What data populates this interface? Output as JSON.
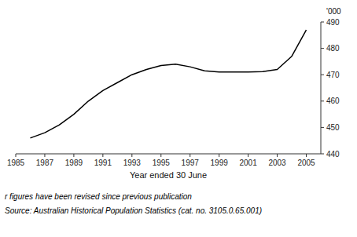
{
  "chart_data": {
    "type": "line",
    "x": [
      1986,
      1987,
      1988,
      1989,
      1990,
      1991,
      1992,
      1993,
      1994,
      1995,
      1996,
      1997,
      1998,
      1999,
      2000,
      2001,
      2002,
      2003,
      2004,
      2005
    ],
    "values": [
      446,
      448,
      451,
      455,
      460,
      464,
      467,
      470,
      472,
      473.5,
      474,
      473,
      471.5,
      471,
      471,
      471,
      471.2,
      472,
      477,
      487
    ],
    "color": "#000000",
    "xlim": [
      1985,
      2006
    ],
    "ylim": [
      440,
      490
    ],
    "xticks": [
      1985,
      1987,
      1989,
      1991,
      1993,
      1995,
      1997,
      1999,
      2001,
      2003,
      2005
    ],
    "yticks": [
      440,
      450,
      460,
      470,
      480,
      490
    ],
    "xlabel": "Year ended 30 June",
    "ylabel": "'000",
    "annotations": [
      "r figures have been revised since previous publication",
      "Source: Australian Historical Population Statistics (cat.  no.  3105.0.65.001)"
    ]
  }
}
